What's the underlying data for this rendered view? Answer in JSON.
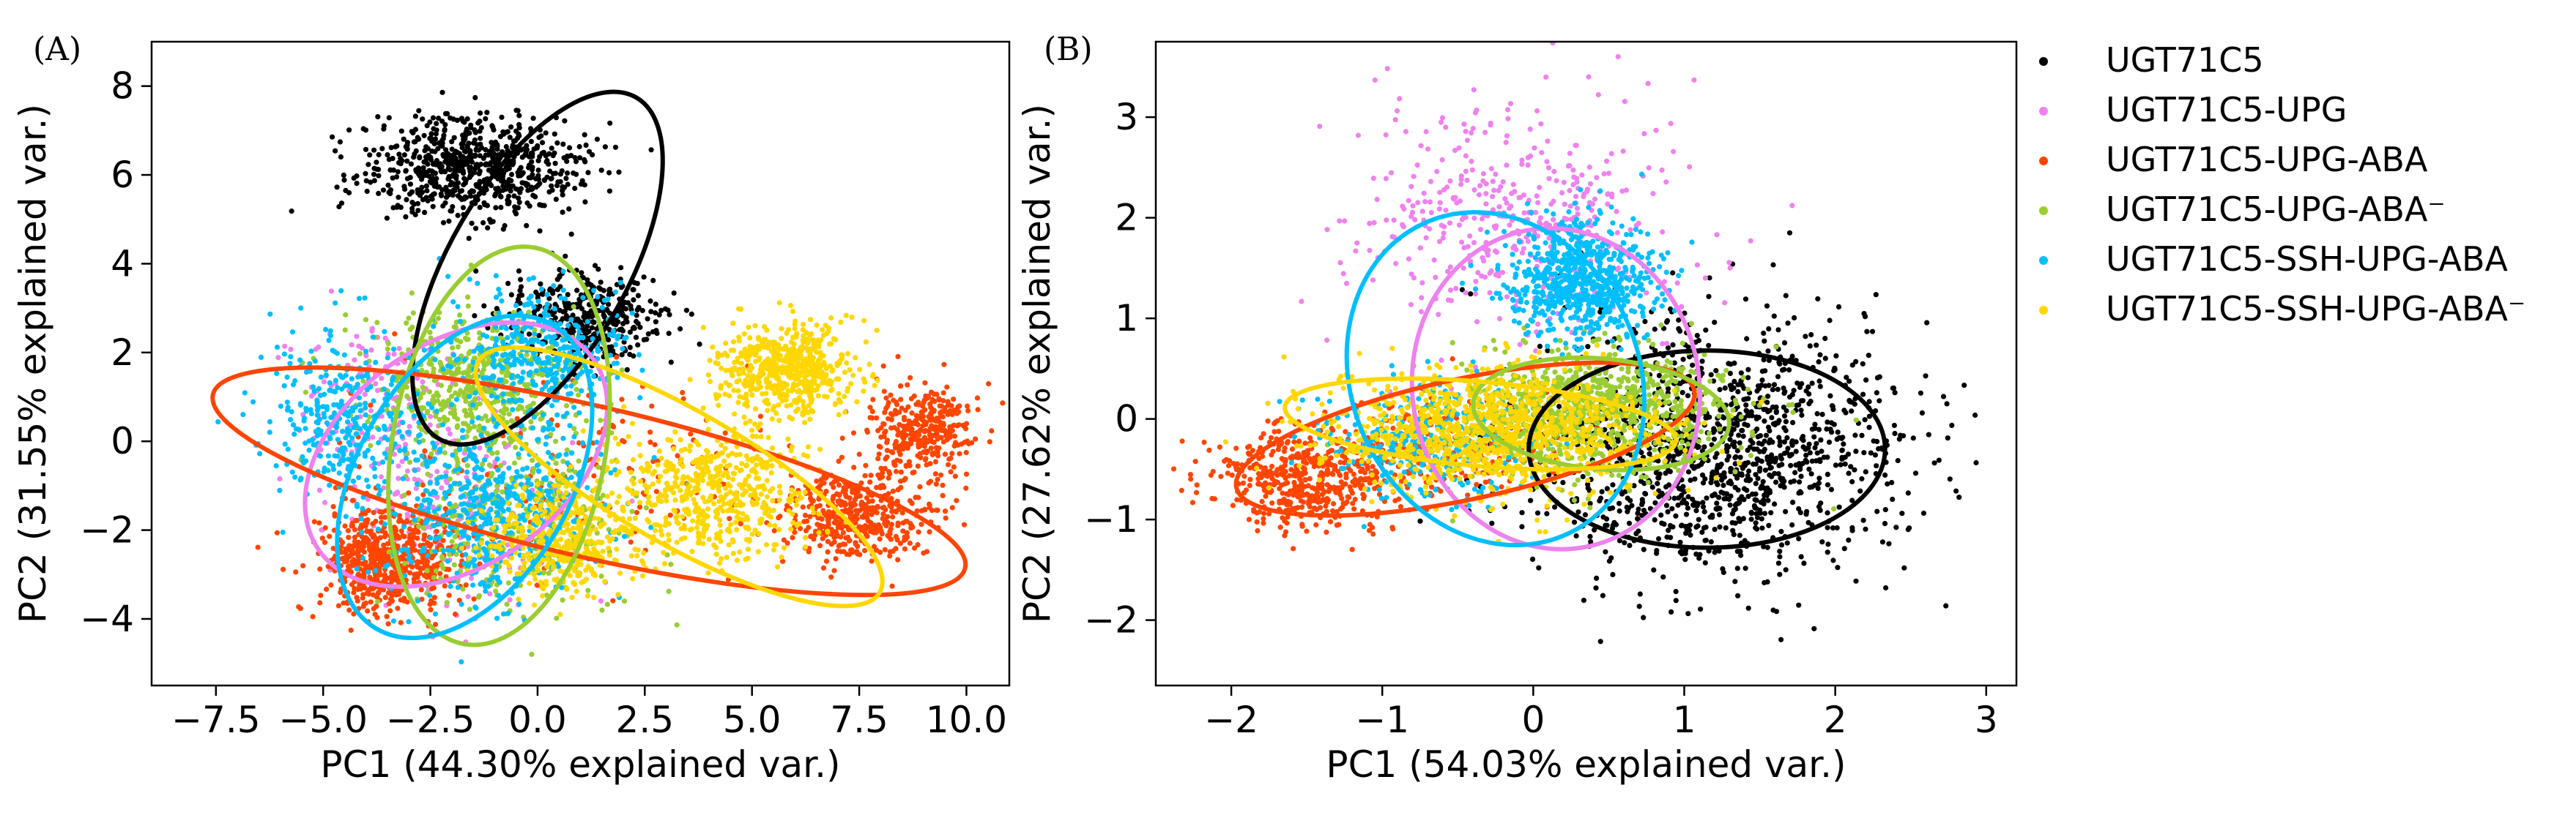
{
  "figure": {
    "legend": [
      {
        "name": "UGT71C5",
        "color": "#000000"
      },
      {
        "name": "UGT71C5-UPG",
        "color": "#ee82ee"
      },
      {
        "name": "UGT71C5-UPG-ABA",
        "color": "#ff4500"
      },
      {
        "name": "UGT71C5-UPG-ABA⁻",
        "color": "#9acd32"
      },
      {
        "name": "UGT71C5-SSH-UPG-ABA",
        "color": "#00bfff"
      },
      {
        "name": "UGT71C5-SSH-UPG-ABA⁻",
        "color": "#ffd700"
      }
    ]
  },
  "chart_data": [
    {
      "type": "scatter",
      "panel_label": "(A)",
      "xlabel": "PC1 (44.30% explained var.)",
      "ylabel": "PC2 (31.55% explained var.)",
      "xlim": [
        -9.0,
        11.0
      ],
      "ylim": [
        -5.5,
        9.0
      ],
      "xticks": [
        -7.5,
        -5.0,
        -2.5,
        0.0,
        2.5,
        5.0,
        7.5,
        10.0
      ],
      "xtick_labels": [
        "−7.5",
        "−5.0",
        "−2.5",
        "0.0",
        "2.5",
        "5.0",
        "7.5",
        "10.0"
      ],
      "yticks": [
        -4,
        -2,
        0,
        2,
        4,
        6,
        8
      ],
      "ytick_labels": [
        "−4",
        "−2",
        "0",
        "2",
        "4",
        "6",
        "8"
      ],
      "series": [
        {
          "name": "UGT71C5",
          "color": "#000000",
          "clusters": [
            {
              "cx": -1.5,
              "cy": 6.2,
              "sx": 1.3,
              "sy": 0.55,
              "n": 750,
              "r": 0
            },
            {
              "cx": 1.2,
              "cy": 2.8,
              "sx": 0.9,
              "sy": 0.5,
              "n": 380,
              "r": 0
            }
          ],
          "ellipse": {
            "cx": 0.0,
            "cy": 3.9,
            "rx": 4.6,
            "ry": 2.0,
            "angle": -60
          }
        },
        {
          "name": "UGT71C5-UPG",
          "color": "#ee82ee",
          "clusters": [
            {
              "cx": -3.8,
              "cy": 0.8,
              "sx": 0.9,
              "sy": 0.9,
              "n": 150,
              "r": 0
            },
            {
              "cx": -2.0,
              "cy": -1.5,
              "sx": 1.3,
              "sy": 1.2,
              "n": 220,
              "r": 0
            }
          ],
          "ellipse": {
            "cx": -1.9,
            "cy": -0.3,
            "rx": 3.9,
            "ry": 2.5,
            "angle": -35
          }
        },
        {
          "name": "UGT71C5-UPG-ABA",
          "color": "#ff4500",
          "clusters": [
            {
              "cx": -3.5,
              "cy": -2.7,
              "sx": 0.8,
              "sy": 0.6,
              "n": 650,
              "r": 0
            },
            {
              "cx": 7.5,
              "cy": -1.7,
              "sx": 0.9,
              "sy": 0.5,
              "n": 450,
              "r": 0
            },
            {
              "cx": 9.0,
              "cy": 0.2,
              "sx": 0.7,
              "sy": 0.5,
              "n": 350,
              "r": 0
            },
            {
              "cx": 1.0,
              "cy": -0.6,
              "sx": 2.5,
              "sy": 1.0,
              "n": 150,
              "r": 0
            }
          ],
          "ellipse": {
            "cx": 1.2,
            "cy": -0.9,
            "rx": 9.0,
            "ry": 1.7,
            "angle": 13
          }
        },
        {
          "name": "UGT71C5-UPG-ABA⁻",
          "color": "#9acd32",
          "clusters": [
            {
              "cx": -1.5,
              "cy": 1.3,
              "sx": 1.2,
              "sy": 0.8,
              "n": 550,
              "r": 0
            },
            {
              "cx": -0.5,
              "cy": -1.8,
              "sx": 1.3,
              "sy": 1.0,
              "n": 350,
              "r": 0
            }
          ],
          "ellipse": {
            "cx": -0.9,
            "cy": -0.1,
            "rx": 4.7,
            "ry": 2.4,
            "angle": -80
          }
        },
        {
          "name": "UGT71C5-SSH-UPG-ABA",
          "color": "#00bfff",
          "clusters": [
            {
              "cx": -4.5,
              "cy": 0.5,
              "sx": 0.9,
              "sy": 1.0,
              "n": 350,
              "r": 0
            },
            {
              "cx": -1.0,
              "cy": -1.5,
              "sx": 1.2,
              "sy": 1.0,
              "n": 550,
              "r": 0
            },
            {
              "cx": 0.0,
              "cy": 2.0,
              "sx": 1.0,
              "sy": 0.8,
              "n": 400,
              "r": 0
            }
          ],
          "ellipse": {
            "cx": -1.7,
            "cy": -0.8,
            "rx": 4.1,
            "ry": 2.4,
            "angle": -60
          }
        },
        {
          "name": "UGT71C5-SSH-UPG-ABA⁻",
          "color": "#ffd700",
          "clusters": [
            {
              "cx": 5.8,
              "cy": 1.6,
              "sx": 0.8,
              "sy": 0.5,
              "n": 600,
              "r": 0
            },
            {
              "cx": 4.0,
              "cy": -1.2,
              "sx": 1.2,
              "sy": 0.7,
              "n": 550,
              "r": 0
            },
            {
              "cx": 0.5,
              "cy": -2.2,
              "sx": 0.8,
              "sy": 0.6,
              "n": 400,
              "r": 0
            }
          ],
          "ellipse": {
            "cx": 3.3,
            "cy": -0.8,
            "rx": 5.4,
            "ry": 1.5,
            "angle": 30
          }
        }
      ]
    },
    {
      "type": "scatter",
      "panel_label": "(B)",
      "xlabel": "PC1 (54.03% explained var.)",
      "ylabel": "PC2 (27.62% explained var.)",
      "xlim": [
        -2.5,
        3.2
      ],
      "ylim": [
        -2.65,
        3.75
      ],
      "xticks": [
        -2,
        -1,
        0,
        1,
        2,
        3
      ],
      "xtick_labels": [
        "−2",
        "−1",
        "0",
        "1",
        "2",
        "3"
      ],
      "yticks": [
        -2,
        -1,
        0,
        1,
        2,
        3
      ],
      "ytick_labels": [
        "−2",
        "−1",
        "0",
        "1",
        "2",
        "3"
      ],
      "series": [
        {
          "name": "UGT71C5",
          "color": "#000000",
          "clusters": [
            {
              "cx": 1.2,
              "cy": -0.3,
              "sx": 0.6,
              "sy": 0.6,
              "n": 1300,
              "r": 0
            }
          ],
          "ellipse": {
            "cx": 1.15,
            "cy": -0.3,
            "rx": 1.18,
            "ry": 0.98,
            "angle": 0
          }
        },
        {
          "name": "UGT71C5-UPG",
          "color": "#ee82ee",
          "clusters": [
            {
              "cx": -0.1,
              "cy": 2.0,
              "sx": 0.55,
              "sy": 0.6,
              "n": 450,
              "r": 0
            }
          ],
          "ellipse": {
            "cx": 0.15,
            "cy": 0.3,
            "rx": 0.95,
            "ry": 1.6,
            "angle": -10
          }
        },
        {
          "name": "UGT71C5-UPG-ABA",
          "color": "#ff4500",
          "clusters": [
            {
              "cx": -1.5,
              "cy": -0.6,
              "sx": 0.3,
              "sy": 0.25,
              "n": 500,
              "r": 0
            },
            {
              "cx": -0.6,
              "cy": -0.3,
              "sx": 0.35,
              "sy": 0.25,
              "n": 250,
              "r": 0
            }
          ],
          "ellipse": {
            "cx": -0.45,
            "cy": -0.2,
            "rx": 1.55,
            "ry": 0.6,
            "angle": -12
          }
        },
        {
          "name": "UGT71C5-UPG-ABA⁻",
          "color": "#9acd32",
          "clusters": [
            {
              "cx": 0.4,
              "cy": 0.1,
              "sx": 0.45,
              "sy": 0.3,
              "n": 900,
              "r": 0
            }
          ],
          "ellipse": {
            "cx": 0.45,
            "cy": 0.05,
            "rx": 0.85,
            "ry": 0.55,
            "angle": 5
          }
        },
        {
          "name": "UGT71C5-SSH-UPG-ABA",
          "color": "#00bfff",
          "clusters": [
            {
              "cx": 0.3,
              "cy": 1.4,
              "sx": 0.25,
              "sy": 0.3,
              "n": 700,
              "r": 0
            },
            {
              "cx": -0.7,
              "cy": -0.2,
              "sx": 0.35,
              "sy": 0.3,
              "n": 300,
              "r": 0
            }
          ],
          "ellipse": {
            "cx": -0.25,
            "cy": 0.4,
            "rx": 0.95,
            "ry": 1.7,
            "angle": -25
          }
        },
        {
          "name": "UGT71C5-SSH-UPG-ABA⁻",
          "color": "#ffd700",
          "clusters": [
            {
              "cx": -0.3,
              "cy": -0.1,
              "sx": 0.55,
              "sy": 0.3,
              "n": 1100,
              "r": 0
            }
          ],
          "ellipse": {
            "cx": -0.35,
            "cy": -0.05,
            "rx": 1.3,
            "ry": 0.42,
            "angle": 5
          }
        }
      ]
    }
  ]
}
